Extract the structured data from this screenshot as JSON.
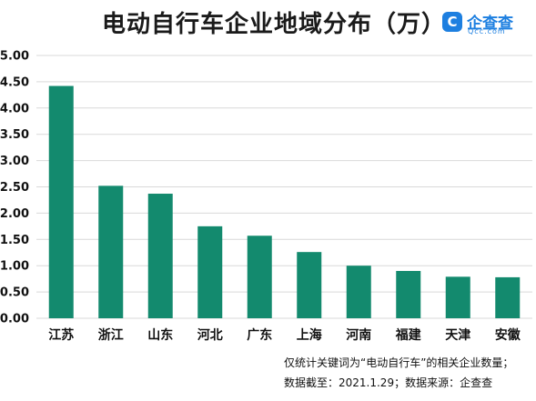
{
  "header": {
    "title": "电动自行车企业地域分布（万）",
    "logo_mark": "C",
    "logo_name": "企查查",
    "logo_domain": "Qcc.com"
  },
  "notes": {
    "line1": "仅统计关键词为“电动自行车”的相关企业数量；",
    "line2": "数据截至：2021.1.29；数据来源：企查查"
  },
  "colors": {
    "bar": "#138a6e",
    "grid": "#d9d9d9",
    "brand": "#1d7fe0"
  },
  "chart_data": {
    "type": "bar",
    "title": "电动自行车企业地域分布（万）",
    "xlabel": "",
    "ylabel": "",
    "categories": [
      "江苏",
      "浙江",
      "山东",
      "河北",
      "广东",
      "上海",
      "河南",
      "福建",
      "天津",
      "安徽"
    ],
    "values": [
      4.42,
      2.52,
      2.37,
      1.75,
      1.57,
      1.26,
      1.0,
      0.9,
      0.79,
      0.78
    ],
    "ylim": [
      0,
      5
    ],
    "yticks": [
      "0.00",
      "0.50",
      "1.00",
      "1.50",
      "2.00",
      "2.50",
      "3.00",
      "3.50",
      "4.00",
      "4.50",
      "5.00"
    ],
    "grid": true,
    "legend": "none"
  }
}
